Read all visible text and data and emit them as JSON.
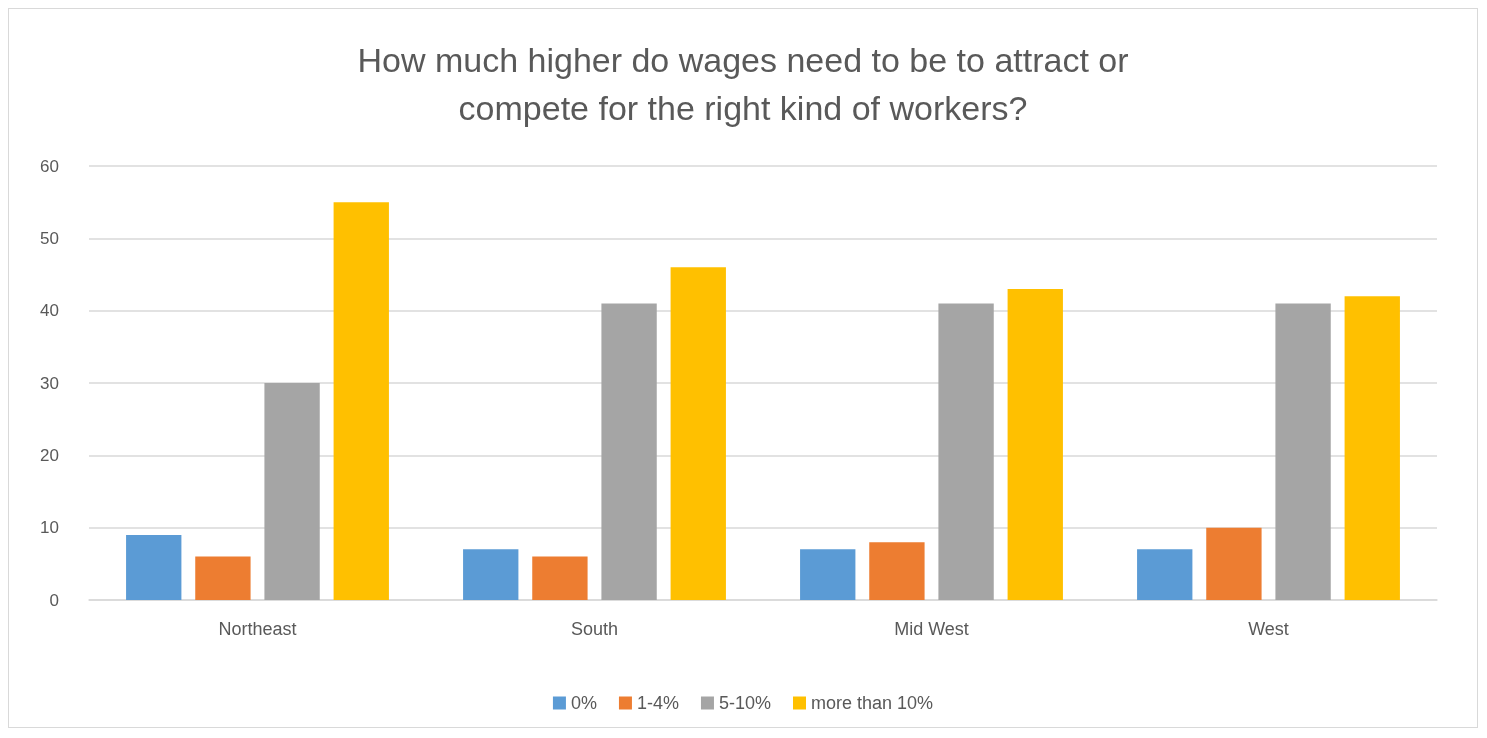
{
  "chart_data": {
    "type": "bar",
    "title": "How much higher do wages need to be to attract or\ncompete for the right kind of workers?",
    "categories": [
      "Northeast",
      "South",
      "Mid West",
      "West"
    ],
    "series": [
      {
        "name": "0%",
        "color": "#5b9bd5",
        "values": [
          9,
          7,
          7,
          7
        ]
      },
      {
        "name": "1-4%",
        "color": "#ed7d31",
        "values": [
          6,
          6,
          8,
          10
        ]
      },
      {
        "name": "5-10%",
        "color": "#a5a5a5",
        "values": [
          30,
          41,
          41,
          41
        ]
      },
      {
        "name": "more than 10%",
        "color": "#ffc000",
        "values": [
          55,
          46,
          43,
          42
        ]
      }
    ],
    "ylim": [
      0,
      60
    ],
    "yticks": [
      0,
      10,
      20,
      30,
      40,
      50,
      60
    ],
    "grid": "y",
    "legend": "bottom"
  }
}
